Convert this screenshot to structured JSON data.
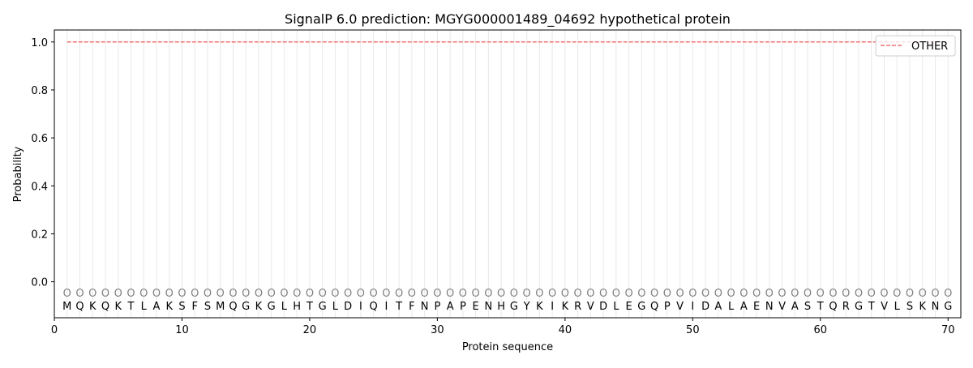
{
  "chart_data": {
    "type": "line",
    "title": "SignalP 6.0 prediction: MGYG000001489_04692 hypothetical protein",
    "xlabel": "Protein sequence",
    "ylabel": "Probability",
    "xlim": [
      0,
      71
    ],
    "ylim": [
      -0.15,
      1.05
    ],
    "xticks": [
      0,
      10,
      20,
      30,
      40,
      50,
      60,
      70
    ],
    "yticks": [
      0.0,
      0.2,
      0.4,
      0.6,
      0.8,
      1.0
    ],
    "ytick_labels": [
      "0.0",
      "0.2",
      "0.4",
      "0.6",
      "0.8",
      "1.0"
    ],
    "sequence": [
      "M",
      "Q",
      "K",
      "Q",
      "K",
      "T",
      "L",
      "A",
      "K",
      "S",
      "F",
      "S",
      "M",
      "Q",
      "G",
      "K",
      "G",
      "L",
      "H",
      "T",
      "G",
      "L",
      "D",
      "I",
      "Q",
      "I",
      "T",
      "F",
      "N",
      "P",
      "A",
      "P",
      "E",
      "N",
      "H",
      "G",
      "Y",
      "K",
      "I",
      "K",
      "R",
      "V",
      "D",
      "L",
      "E",
      "G",
      "Q",
      "P",
      "V",
      "I",
      "D",
      "A",
      "L",
      "A",
      "E",
      "N",
      "V",
      "A",
      "S",
      "T",
      "Q",
      "R",
      "G",
      "T",
      "V",
      "L",
      "S",
      "K",
      "N",
      "G"
    ],
    "predicted_labels": "OOOOOOOOOOOOOOOOOOOOOOOOOOOOOOOOOOOOOOOOOOOOOOOOOOOOOOOOOOOOOOOOOOOOOO",
    "series": [
      {
        "name": "OTHER",
        "color": "#f07070",
        "style": "dashed",
        "x_range": [
          1,
          70
        ],
        "value": 1.0
      }
    ],
    "legend": "top-right",
    "grid": "vertical lines at each residue"
  }
}
